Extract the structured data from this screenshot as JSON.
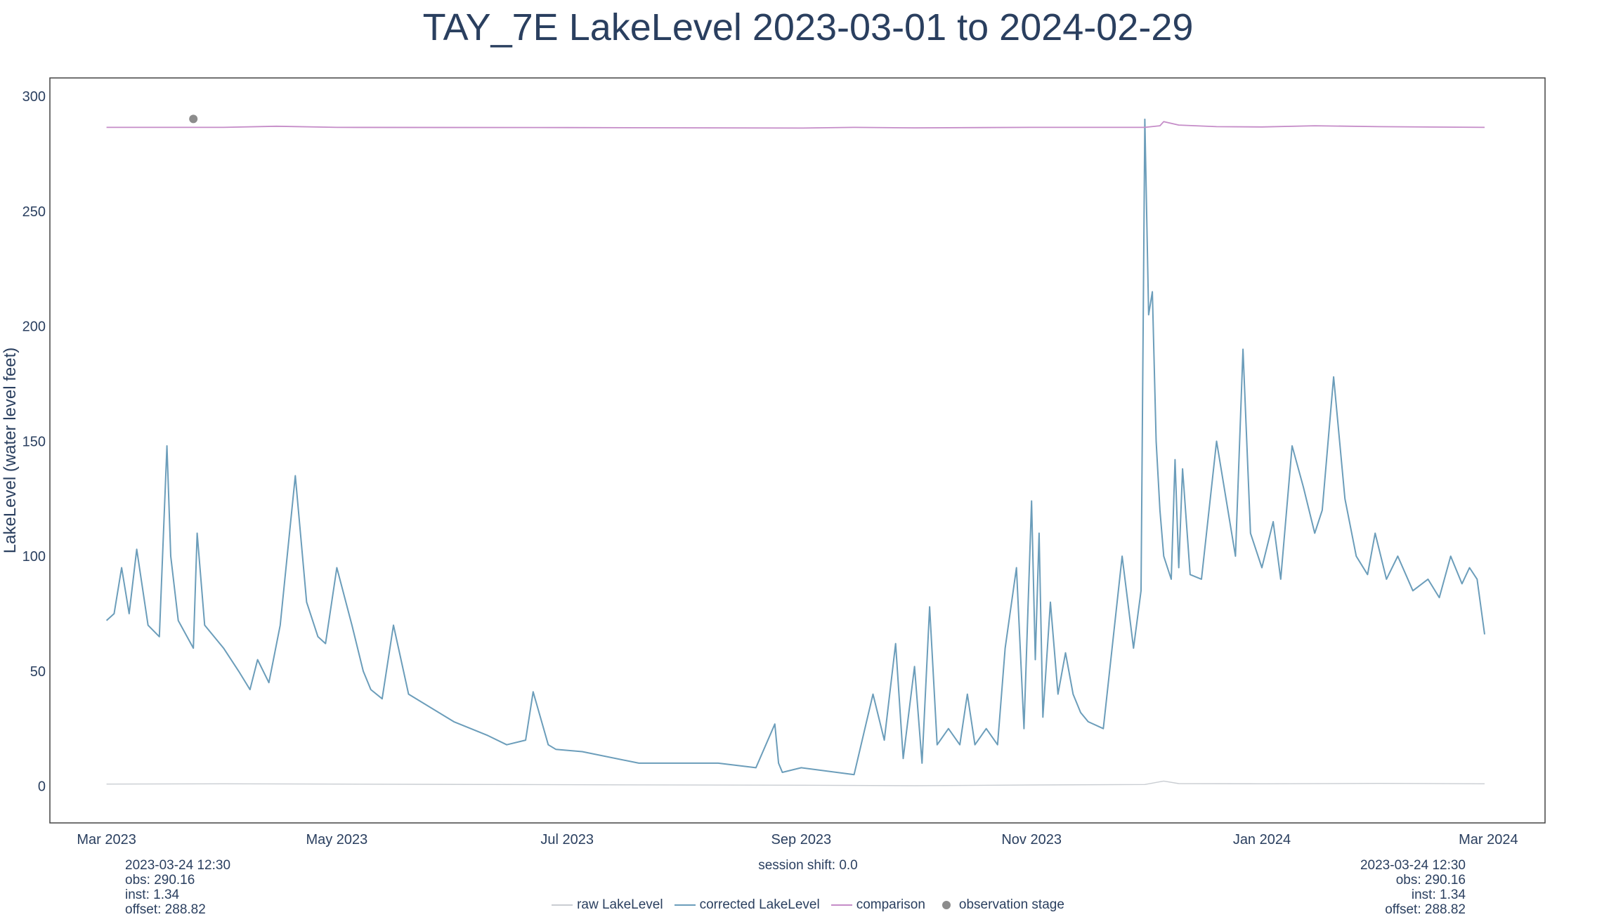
{
  "title": "TAY_7E LakeLevel 2023-03-01 to 2024-02-29",
  "info_left": {
    "time": "2023-03-24 12:30",
    "obs": "obs: 290.16",
    "inst": "inst: 1.34",
    "offset": "offset: 288.82"
  },
  "info_right": {
    "time": "2023-03-24 12:30",
    "obs": "obs: 290.16",
    "inst": "inst: 1.34",
    "offset": "offset: 288.82"
  },
  "session_shift": "session shift: 0.0",
  "colors": {
    "raw": "#c9cdd2",
    "corrected": "#6b9dba",
    "comparison": "#c58cc8",
    "observation": "#8c8c8c",
    "text": "#2a3f5f"
  },
  "chart_data": {
    "type": "line",
    "title": "TAY_7E LakeLevel 2023-03-01 to 2024-02-29",
    "xlabel": "",
    "ylabel": "LakeLevel (water level feet)",
    "xlim": [
      "2023-02-14",
      "2024-03-16"
    ],
    "ylim": [
      -16,
      308
    ],
    "x_ticks": [
      "2023-03-01",
      "2023-05-01",
      "2023-07-01",
      "2023-09-01",
      "2023-11-01",
      "2024-01-01",
      "2024-03-01"
    ],
    "x_tick_labels": [
      "Mar 2023",
      "May 2023",
      "Jul 2023",
      "Sep 2023",
      "Nov 2023",
      "Jan 2024",
      "Mar 2024"
    ],
    "y_ticks": [
      0,
      50,
      100,
      150,
      200,
      250,
      300
    ],
    "grid": false,
    "legend_position": "bottom-center",
    "series": [
      {
        "name": "raw LakeLevel",
        "x": [
          "2023-03-01",
          "2023-04-01",
          "2023-05-01",
          "2023-07-01",
          "2023-09-01",
          "2023-10-01",
          "2023-11-01",
          "2023-12-01",
          "2023-12-06",
          "2023-12-10",
          "2024-01-01",
          "2024-02-01",
          "2024-02-29"
        ],
        "y": [
          0.9,
          1.0,
          0.9,
          0.6,
          0.4,
          0.2,
          0.5,
          0.7,
          2.2,
          1.1,
          1.0,
          1.2,
          1.0
        ]
      },
      {
        "name": "corrected LakeLevel",
        "x": [
          "2023-03-01",
          "2023-03-03",
          "2023-03-05",
          "2023-03-07",
          "2023-03-09",
          "2023-03-12",
          "2023-03-15",
          "2023-03-17",
          "2023-03-18",
          "2023-03-20",
          "2023-03-24",
          "2023-03-25",
          "2023-03-27",
          "2023-04-01",
          "2023-04-05",
          "2023-04-08",
          "2023-04-10",
          "2023-04-13",
          "2023-04-16",
          "2023-04-20",
          "2023-04-23",
          "2023-04-26",
          "2023-04-28",
          "2023-05-01",
          "2023-05-05",
          "2023-05-08",
          "2023-05-10",
          "2023-05-13",
          "2023-05-16",
          "2023-05-20",
          "2023-06-01",
          "2023-06-10",
          "2023-06-15",
          "2023-06-20",
          "2023-06-22",
          "2023-06-26",
          "2023-06-28",
          "2023-07-05",
          "2023-07-20",
          "2023-08-01",
          "2023-08-10",
          "2023-08-20",
          "2023-08-25",
          "2023-08-26",
          "2023-08-27",
          "2023-09-01",
          "2023-09-15",
          "2023-09-20",
          "2023-09-23",
          "2023-09-26",
          "2023-09-28",
          "2023-10-01",
          "2023-10-03",
          "2023-10-05",
          "2023-10-07",
          "2023-10-10",
          "2023-10-13",
          "2023-10-15",
          "2023-10-17",
          "2023-10-20",
          "2023-10-23",
          "2023-10-25",
          "2023-10-28",
          "2023-10-30",
          "2023-11-01",
          "2023-11-02",
          "2023-11-03",
          "2023-11-04",
          "2023-11-06",
          "2023-11-08",
          "2023-11-10",
          "2023-11-12",
          "2023-11-14",
          "2023-11-16",
          "2023-11-20",
          "2023-11-25",
          "2023-11-28",
          "2023-11-30",
          "2023-12-01",
          "2023-12-02",
          "2023-12-03",
          "2023-12-04",
          "2023-12-05",
          "2023-12-06",
          "2023-12-07",
          "2023-12-08",
          "2023-12-09",
          "2023-12-10",
          "2023-12-11",
          "2023-12-13",
          "2023-12-16",
          "2023-12-20",
          "2023-12-25",
          "2023-12-27",
          "2023-12-29",
          "2024-01-01",
          "2024-01-04",
          "2024-01-06",
          "2024-01-09",
          "2024-01-12",
          "2024-01-15",
          "2024-01-17",
          "2024-01-20",
          "2024-01-23",
          "2024-01-26",
          "2024-01-29",
          "2024-01-31",
          "2024-02-03",
          "2024-02-06",
          "2024-02-10",
          "2024-02-14",
          "2024-02-17",
          "2024-02-20",
          "2024-02-23",
          "2024-02-25",
          "2024-02-27",
          "2024-02-29"
        ],
        "y": [
          72,
          75,
          95,
          75,
          103,
          70,
          65,
          148,
          100,
          72,
          60,
          110,
          70,
          60,
          50,
          42,
          55,
          45,
          70,
          135,
          80,
          65,
          62,
          95,
          70,
          50,
          42,
          38,
          70,
          40,
          28,
          22,
          18,
          20,
          41,
          18,
          16,
          15,
          10,
          10,
          10,
          8,
          27,
          10,
          6,
          8,
          5,
          40,
          20,
          62,
          12,
          52,
          10,
          78,
          18,
          25,
          18,
          40,
          18,
          25,
          18,
          60,
          95,
          25,
          124,
          55,
          110,
          30,
          80,
          40,
          58,
          40,
          32,
          28,
          25,
          100,
          60,
          85,
          290,
          205,
          215,
          150,
          120,
          100,
          95,
          90,
          142,
          95,
          138,
          92,
          90,
          150,
          100,
          190,
          110,
          95,
          115,
          90,
          148,
          130,
          110,
          120,
          178,
          125,
          100,
          92,
          110,
          90,
          100,
          85,
          90,
          82,
          100,
          88,
          95,
          90,
          66
        ]
      },
      {
        "name": "comparison",
        "x": [
          "2023-03-01",
          "2023-04-01",
          "2023-04-15",
          "2023-05-01",
          "2023-07-01",
          "2023-09-01",
          "2023-09-15",
          "2023-10-01",
          "2023-11-01",
          "2023-11-15",
          "2023-12-01",
          "2023-12-05",
          "2023-12-06",
          "2023-12-10",
          "2023-12-20",
          "2024-01-01",
          "2024-01-15",
          "2024-02-01",
          "2024-02-29"
        ],
        "y": [
          286.5,
          286.5,
          287.0,
          286.5,
          286.4,
          286.2,
          286.5,
          286.3,
          286.5,
          286.5,
          286.5,
          287.2,
          289.0,
          287.5,
          286.8,
          286.7,
          287.2,
          286.8,
          286.5
        ]
      },
      {
        "name": "observation stage",
        "x": [
          "2023-03-24"
        ],
        "y": [
          290.16
        ]
      }
    ]
  }
}
